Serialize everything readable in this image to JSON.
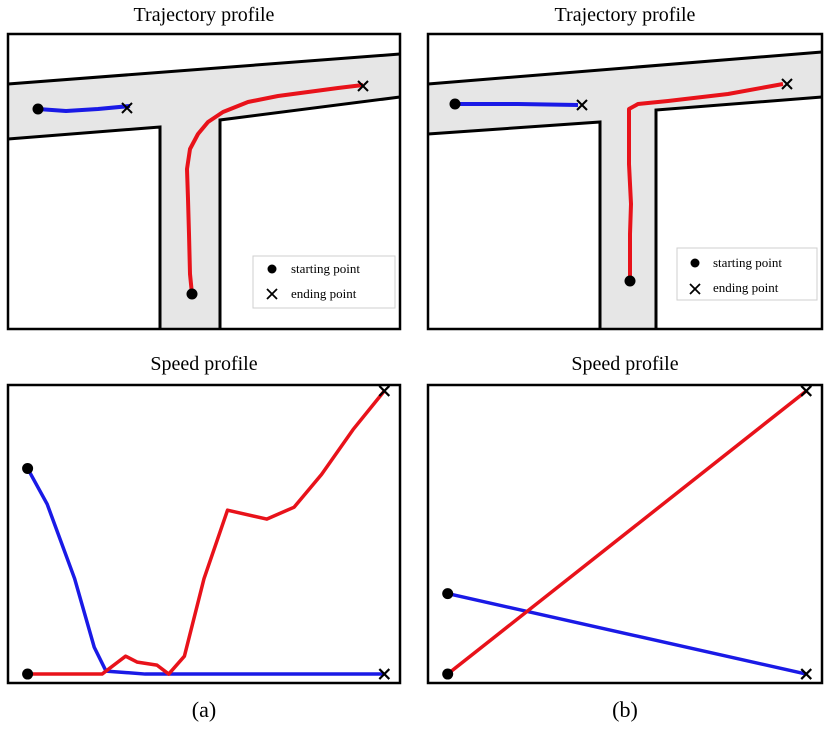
{
  "colors": {
    "series_a": "#e8121a",
    "series_b": "#1a1ae6",
    "corridor": "#e6e6e6",
    "marker": "#000000"
  },
  "legend": {
    "start_label": "starting point",
    "end_label": "ending point"
  },
  "captions": {
    "a": "(a)",
    "b": "(b)"
  },
  "chart_data": [
    {
      "panel": "a-top",
      "type": "line",
      "title": "Trajectory profile",
      "corridor": "T-junction",
      "legend_position": "bottom-right",
      "series": [
        {
          "color": "blue",
          "points": [
            [
              0.09,
              0.75
            ],
            [
              0.3,
              0.76
            ]
          ]
        },
        {
          "color": "red",
          "points": [
            [
              0.45,
              0.11
            ],
            [
              0.44,
              0.35
            ],
            [
              0.45,
              0.58
            ],
            [
              0.48,
              0.68
            ],
            [
              0.54,
              0.73
            ],
            [
              0.65,
              0.76
            ],
            [
              0.78,
              0.78
            ],
            [
              0.88,
              0.81
            ]
          ]
        }
      ]
    },
    {
      "panel": "b-top",
      "type": "line",
      "title": "Trajectory profile",
      "corridor": "T-junction",
      "legend_position": "bottom-right",
      "series": [
        {
          "color": "blue",
          "points": [
            [
              0.09,
              0.76
            ],
            [
              0.35,
              0.76
            ]
          ]
        },
        {
          "color": "red",
          "points": [
            [
              0.5,
              0.17
            ],
            [
              0.49,
              0.5
            ],
            [
              0.49,
              0.78
            ],
            [
              0.6,
              0.78
            ],
            [
              0.8,
              0.8
            ],
            [
              0.88,
              0.81
            ]
          ]
        }
      ]
    },
    {
      "panel": "a-bottom",
      "type": "line",
      "title": "Speed profile",
      "series": [
        {
          "color": "blue",
          "points": [
            [
              0.05,
              0.72
            ],
            [
              0.1,
              0.6
            ],
            [
              0.17,
              0.35
            ],
            [
              0.22,
              0.12
            ],
            [
              0.25,
              0.04
            ],
            [
              0.35,
              0.03
            ],
            [
              0.96,
              0.03
            ]
          ]
        },
        {
          "color": "red",
          "points": [
            [
              0.05,
              0.03
            ],
            [
              0.24,
              0.03
            ],
            [
              0.28,
              0.07
            ],
            [
              0.3,
              0.09
            ],
            [
              0.33,
              0.07
            ],
            [
              0.38,
              0.06
            ],
            [
              0.41,
              0.03
            ],
            [
              0.45,
              0.09
            ],
            [
              0.5,
              0.35
            ],
            [
              0.56,
              0.58
            ],
            [
              0.66,
              0.55
            ],
            [
              0.73,
              0.59
            ],
            [
              0.8,
              0.7
            ],
            [
              0.88,
              0.85
            ],
            [
              0.96,
              0.98
            ]
          ]
        }
      ]
    },
    {
      "panel": "b-bottom",
      "type": "line",
      "title": "Speed profile",
      "series": [
        {
          "color": "blue",
          "points": [
            [
              0.05,
              0.3
            ],
            [
              0.96,
              0.03
            ]
          ]
        },
        {
          "color": "red",
          "points": [
            [
              0.05,
              0.03
            ],
            [
              0.96,
              0.98
            ]
          ]
        }
      ]
    }
  ]
}
